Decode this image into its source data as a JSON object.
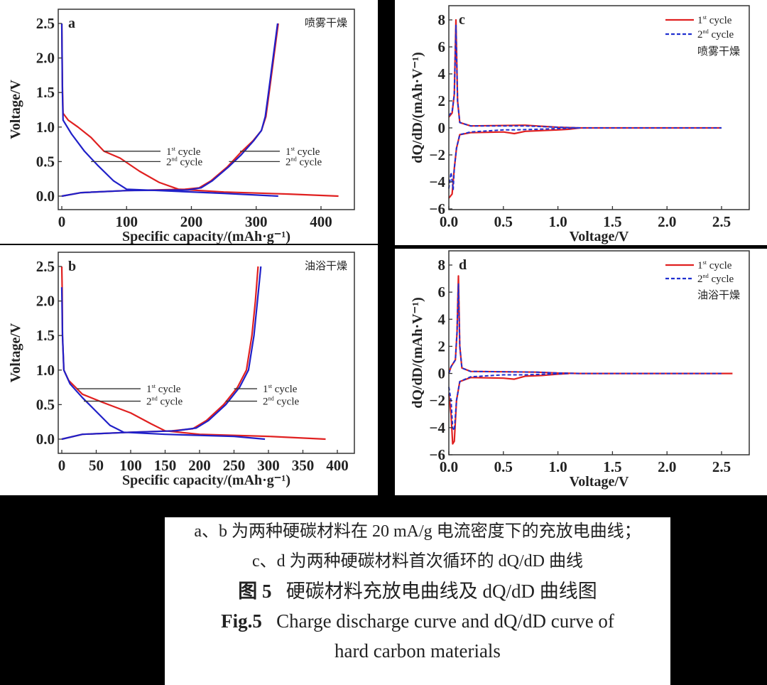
{
  "chart_data": [
    {
      "type": "line",
      "panel_letter": "a",
      "panel_label": "喷雾干燥",
      "xlabel": "Specific capacity/(mAh·g⁻¹)",
      "ylabel": "Voltage/V",
      "xlim": [
        0,
        440
      ],
      "ylim": [
        -0.2,
        2.7
      ],
      "xticks": [
        0,
        100,
        200,
        300,
        400
      ],
      "yticks": [
        0.0,
        0.5,
        1.0,
        1.5,
        2.0,
        2.5
      ],
      "tick_decimals_y": 1,
      "colors": {
        "cycle1": "#e02020",
        "cycle2": "#2020c8"
      },
      "series": [
        {
          "cycle": 1,
          "branch": "discharge",
          "color": "#e02020",
          "points": [
            [
              0,
              2.5
            ],
            [
              1,
              1.6
            ],
            [
              2,
              1.2
            ],
            [
              10,
              1.1
            ],
            [
              25,
              1.0
            ],
            [
              45,
              0.85
            ],
            [
              65,
              0.65
            ],
            [
              90,
              0.55
            ],
            [
              120,
              0.36
            ],
            [
              150,
              0.2
            ],
            [
              180,
              0.1
            ],
            [
              250,
              0.06
            ],
            [
              350,
              0.03
            ],
            [
              427,
              0.0
            ]
          ]
        },
        {
          "cycle": 1,
          "branch": "charge",
          "color": "#e02020",
          "points": [
            [
              0,
              0.0
            ],
            [
              30,
              0.05
            ],
            [
              100,
              0.08
            ],
            [
              190,
              0.1
            ],
            [
              212,
              0.12
            ],
            [
              230,
              0.22
            ],
            [
              255,
              0.42
            ],
            [
              275,
              0.62
            ],
            [
              295,
              0.8
            ],
            [
              308,
              0.95
            ],
            [
              315,
              1.15
            ],
            [
              320,
              1.5
            ],
            [
              327,
              2.0
            ],
            [
              334,
              2.5
            ]
          ]
        },
        {
          "cycle": 2,
          "branch": "discharge",
          "color": "#2020c8",
          "points": [
            [
              0,
              2.5
            ],
            [
              1,
              1.5
            ],
            [
              2,
              1.1
            ],
            [
              15,
              0.9
            ],
            [
              35,
              0.65
            ],
            [
              55,
              0.45
            ],
            [
              80,
              0.22
            ],
            [
              100,
              0.1
            ],
            [
              150,
              0.08
            ],
            [
              250,
              0.04
            ],
            [
              334,
              0.0
            ]
          ]
        },
        {
          "cycle": 2,
          "branch": "charge",
          "color": "#2020c8",
          "points": [
            [
              0,
              0.0
            ],
            [
              30,
              0.05
            ],
            [
              100,
              0.08
            ],
            [
              195,
              0.09
            ],
            [
              215,
              0.12
            ],
            [
              232,
              0.22
            ],
            [
              257,
              0.42
            ],
            [
              277,
              0.6
            ],
            [
              296,
              0.8
            ],
            [
              308,
              0.95
            ],
            [
              314,
              1.15
            ],
            [
              319,
              1.5
            ],
            [
              326,
              2.0
            ],
            [
              333,
              2.5
            ]
          ]
        }
      ],
      "annotations": [
        {
          "num": "1",
          "sup": "st",
          "text": " cycle"
        },
        {
          "num": "2",
          "sup": "nd",
          "text": " cycle"
        },
        {
          "num": "1",
          "sup": "st",
          "text": " cycle"
        },
        {
          "num": "2",
          "sup": "nd",
          "text": " cycle"
        }
      ]
    },
    {
      "type": "line",
      "panel_letter": "b",
      "panel_label": "油浴干燥",
      "xlabel": "Specific capacity/(mAh·g⁻¹)",
      "ylabel": "Voltage/V",
      "xlim": [
        0,
        420
      ],
      "ylim": [
        -0.2,
        2.7
      ],
      "xticks": [
        0,
        50,
        100,
        150,
        200,
        250,
        300,
        350,
        400
      ],
      "yticks": [
        0.0,
        0.5,
        1.0,
        1.5,
        2.0,
        2.5
      ],
      "tick_decimals_y": 1,
      "colors": {
        "cycle1": "#e02020",
        "cycle2": "#2020c8"
      },
      "series": [
        {
          "cycle": 1,
          "branch": "discharge",
          "color": "#e02020",
          "points": [
            [
              0,
              2.5
            ],
            [
              0.5,
              2.2
            ],
            [
              1,
              1.5
            ],
            [
              3,
              1.0
            ],
            [
              10,
              0.85
            ],
            [
              30,
              0.65
            ],
            [
              60,
              0.53
            ],
            [
              100,
              0.38
            ],
            [
              130,
              0.22
            ],
            [
              150,
              0.12
            ],
            [
              200,
              0.07
            ],
            [
              300,
              0.04
            ],
            [
              383,
              0.0
            ]
          ]
        },
        {
          "cycle": 1,
          "branch": "charge",
          "color": "#e02020",
          "points": [
            [
              0,
              0.0
            ],
            [
              30,
              0.07
            ],
            [
              100,
              0.1
            ],
            [
              160,
              0.12
            ],
            [
              190,
              0.15
            ],
            [
              210,
              0.27
            ],
            [
              235,
              0.5
            ],
            [
              255,
              0.75
            ],
            [
              268,
              1.0
            ],
            [
              276,
              1.5
            ],
            [
              281,
              2.0
            ],
            [
              285,
              2.5
            ]
          ]
        },
        {
          "cycle": 2,
          "branch": "discharge",
          "color": "#2020c8",
          "points": [
            [
              0,
              2.2
            ],
            [
              1,
              1.5
            ],
            [
              3,
              1.0
            ],
            [
              12,
              0.8
            ],
            [
              30,
              0.6
            ],
            [
              50,
              0.4
            ],
            [
              70,
              0.2
            ],
            [
              90,
              0.1
            ],
            [
              150,
              0.07
            ],
            [
              250,
              0.04
            ],
            [
              295,
              0.0
            ]
          ]
        },
        {
          "cycle": 2,
          "branch": "charge",
          "color": "#2020c8",
          "points": [
            [
              0,
              0.0
            ],
            [
              30,
              0.07
            ],
            [
              100,
              0.1
            ],
            [
              165,
              0.12
            ],
            [
              195,
              0.16
            ],
            [
              213,
              0.27
            ],
            [
              238,
              0.5
            ],
            [
              258,
              0.75
            ],
            [
              271,
              1.0
            ],
            [
              279,
              1.5
            ],
            [
              284,
              2.0
            ],
            [
              289,
              2.5
            ]
          ]
        }
      ],
      "annotations": [
        {
          "num": "1",
          "sup": "st",
          "text": " cycle"
        },
        {
          "num": "2",
          "sup": "nd",
          "text": " cycle"
        },
        {
          "num": "1",
          "sup": "st",
          "text": " cycle"
        },
        {
          "num": "2",
          "sup": "nd",
          "text": " cycle"
        }
      ]
    },
    {
      "type": "line",
      "panel_letter": "c",
      "panel_label": "喷雾干燥",
      "xlabel": "Voltage/V",
      "ylabel": "dQ/dD/(mAh·V⁻¹)",
      "xlim": [
        0,
        2.75
      ],
      "ylim": [
        -6,
        9
      ],
      "xticks": [
        0.0,
        0.5,
        1.0,
        1.5,
        2.0,
        2.5
      ],
      "yticks": [
        -6,
        -4,
        -2,
        0,
        2,
        4,
        6,
        8
      ],
      "tick_decimals_x": 1,
      "legend": {
        "placement": "top-right",
        "entries": [
          {
            "num": "1",
            "sup": "st",
            "text": " cycle",
            "style": "solid",
            "color": "#e02020"
          },
          {
            "num": "2",
            "sup": "nd",
            "text": " cycle",
            "style": "dashed",
            "color": "#2030d0"
          }
        ]
      },
      "series": [
        {
          "name": "1st cycle",
          "color": "#e02020",
          "style": "solid",
          "points": [
            [
              0,
              0.8
            ],
            [
              0.03,
              1.1
            ],
            [
              0.05,
              2.5
            ],
            [
              0.065,
              8.0
            ],
            [
              0.08,
              2.0
            ],
            [
              0.1,
              0.4
            ],
            [
              0.2,
              0.15
            ],
            [
              0.7,
              0.2
            ],
            [
              1.0,
              0.05
            ],
            [
              1.2,
              0
            ],
            [
              2.5,
              0
            ]
          ]
        },
        {
          "name": "1st cycle",
          "color": "#e02020",
          "style": "solid",
          "points": [
            [
              0,
              -5.2
            ],
            [
              0.03,
              -4.9
            ],
            [
              0.05,
              -3.0
            ],
            [
              0.07,
              -1.5
            ],
            [
              0.1,
              -0.5
            ],
            [
              0.2,
              -0.35
            ],
            [
              0.5,
              -0.3
            ],
            [
              0.6,
              -0.42
            ],
            [
              0.7,
              -0.25
            ],
            [
              1.0,
              -0.15
            ],
            [
              1.1,
              -0.1
            ],
            [
              1.2,
              0
            ]
          ]
        },
        {
          "name": "2nd cycle",
          "color": "#2030d0",
          "style": "dashed",
          "points": [
            [
              0,
              0.9
            ],
            [
              0.03,
              1.2
            ],
            [
              0.05,
              2.5
            ],
            [
              0.065,
              7.6
            ],
            [
              0.08,
              2.0
            ],
            [
              0.1,
              0.4
            ],
            [
              0.2,
              0.15
            ],
            [
              0.7,
              0.15
            ],
            [
              1.0,
              0.05
            ],
            [
              1.2,
              0
            ],
            [
              2.5,
              0
            ]
          ]
        },
        {
          "name": "2nd cycle",
          "color": "#2030d0",
          "style": "dashed",
          "points": [
            [
              0,
              -4.5
            ],
            [
              0.02,
              -3.3
            ],
            [
              0.04,
              -4.6
            ],
            [
              0.05,
              -3.0
            ],
            [
              0.07,
              -1.5
            ],
            [
              0.1,
              -0.5
            ],
            [
              0.2,
              -0.3
            ],
            [
              0.5,
              -0.15
            ],
            [
              0.6,
              -0.15
            ],
            [
              1.0,
              -0.05
            ],
            [
              1.2,
              0
            ]
          ]
        }
      ]
    },
    {
      "type": "line",
      "panel_letter": "d",
      "panel_label": "油浴干燥",
      "xlabel": "Voltage/V",
      "ylabel": "dQ/dD/(mAh·V⁻¹)",
      "xlim": [
        0,
        2.75
      ],
      "ylim": [
        -6,
        9
      ],
      "xticks": [
        0.0,
        0.5,
        1.0,
        1.5,
        2.0,
        2.5
      ],
      "yticks": [
        -6,
        -4,
        -2,
        0,
        2,
        4,
        6,
        8
      ],
      "tick_decimals_x": 1,
      "legend": {
        "placement": "top-right",
        "entries": [
          {
            "num": "1",
            "sup": "st",
            "text": " cycle",
            "style": "solid",
            "color": "#e02020"
          },
          {
            "num": "2",
            "sup": "nd",
            "text": " cycle",
            "style": "dashed",
            "color": "#2030d0"
          }
        ]
      },
      "series": [
        {
          "name": "1st cycle",
          "color": "#e02020",
          "style": "solid",
          "points": [
            [
              0,
              0.0
            ],
            [
              0.02,
              0.5
            ],
            [
              0.06,
              1.0
            ],
            [
              0.075,
              3.0
            ],
            [
              0.088,
              7.2
            ],
            [
              0.1,
              2.0
            ],
            [
              0.12,
              0.4
            ],
            [
              0.2,
              0.15
            ],
            [
              0.8,
              0.1
            ],
            [
              1.0,
              0.03
            ],
            [
              1.2,
              0
            ],
            [
              2.6,
              0
            ]
          ]
        },
        {
          "name": "1st cycle",
          "color": "#e02020",
          "style": "solid",
          "points": [
            [
              0,
              -1.5
            ],
            [
              0.02,
              -3.0
            ],
            [
              0.035,
              -5.2
            ],
            [
              0.05,
              -5.0
            ],
            [
              0.07,
              -2.0
            ],
            [
              0.1,
              -0.6
            ],
            [
              0.2,
              -0.3
            ],
            [
              0.5,
              -0.35
            ],
            [
              0.6,
              -0.42
            ],
            [
              0.7,
              -0.2
            ],
            [
              0.85,
              -0.15
            ],
            [
              1.0,
              -0.05
            ],
            [
              1.1,
              0
            ]
          ]
        },
        {
          "name": "2nd cycle",
          "color": "#2030d0",
          "style": "dashed",
          "points": [
            [
              0,
              0.0
            ],
            [
              0.02,
              0.5
            ],
            [
              0.06,
              1.0
            ],
            [
              0.075,
              3.0
            ],
            [
              0.088,
              6.6
            ],
            [
              0.1,
              2.0
            ],
            [
              0.12,
              0.4
            ],
            [
              0.2,
              0.15
            ],
            [
              0.8,
              0.1
            ],
            [
              1.0,
              0.03
            ],
            [
              1.2,
              0
            ],
            [
              2.5,
              0
            ]
          ]
        },
        {
          "name": "2nd cycle",
          "color": "#2030d0",
          "style": "dashed",
          "points": [
            [
              0,
              -1.0
            ],
            [
              0.02,
              -2.0
            ],
            [
              0.035,
              -4.0
            ],
            [
              0.05,
              -4.2
            ],
            [
              0.07,
              -2.0
            ],
            [
              0.1,
              -0.6
            ],
            [
              0.2,
              -0.25
            ],
            [
              0.5,
              -0.1
            ],
            [
              0.7,
              -0.1
            ],
            [
              1.0,
              -0.03
            ],
            [
              1.1,
              0
            ]
          ]
        }
      ]
    }
  ],
  "caption": {
    "line1": "a、b 为两种硬碳材料在 20 mA/g 电流密度下的充放电曲线；",
    "line2": "c、d 为两种硬碳材料首次循环的 dQ/dD 曲线",
    "fig_cn_label": "图 5",
    "fig_cn_title": "硬碳材料充放电曲线及 dQ/dD 曲线图",
    "fig_en_label": "Fig.5",
    "fig_en_title": "Charge discharge curve and dQ/dD curve of",
    "fig_en_title2": "hard carbon materials"
  }
}
